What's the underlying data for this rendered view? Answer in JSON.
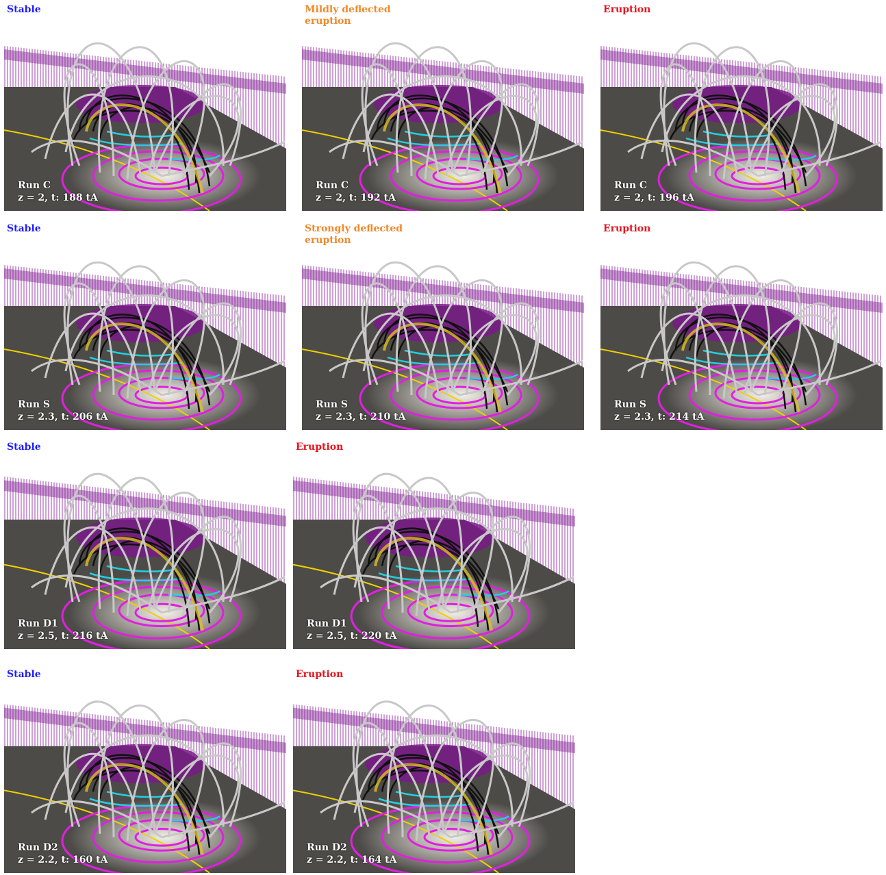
{
  "panels": [
    {
      "status": "Stable",
      "status_color": "#1f1fff",
      "run": "Run C",
      "params": "z = 2, t: 188 tA"
    },
    {
      "status": "Mildly deflected eruption",
      "status_color": "#f0882a",
      "run": "Run C",
      "params": "z = 2, t: 192 tA"
    },
    {
      "status": "Eruption",
      "status_color": "#e8141e",
      "run": "Run C",
      "params": "z = 2, t: 196 tA"
    },
    {
      "status": "Stable",
      "status_color": "#1f1fff",
      "run": "Run S",
      "params": "z = 2.3, t: 206 tA"
    },
    {
      "status": "Strongly deflected eruption",
      "status_color": "#f0882a",
      "run": "Run S",
      "params": "z = 2.3, t: 210 tA"
    },
    {
      "status": "Eruption",
      "status_color": "#e8141e",
      "run": "Run S",
      "params": "z = 2.3, t: 214 tA"
    },
    {
      "status": "Stable",
      "status_color": "#1f1fff",
      "run": "Run D1",
      "params": "z = 2.5, t: 216 tA"
    },
    {
      "status": "Eruption",
      "status_color": "#e8141e",
      "run": "Run D1",
      "params": "z = 2.5, t: 220 tA"
    },
    {
      "status": "Stable",
      "status_color": "#1f1fff",
      "run": "Run D2",
      "params": "z = 2.2, t: 160 tA"
    },
    {
      "status": "Eruption",
      "status_color": "#e8141e",
      "run": "Run D2",
      "params": "z = 2.2, t: 164 tA"
    }
  ]
}
